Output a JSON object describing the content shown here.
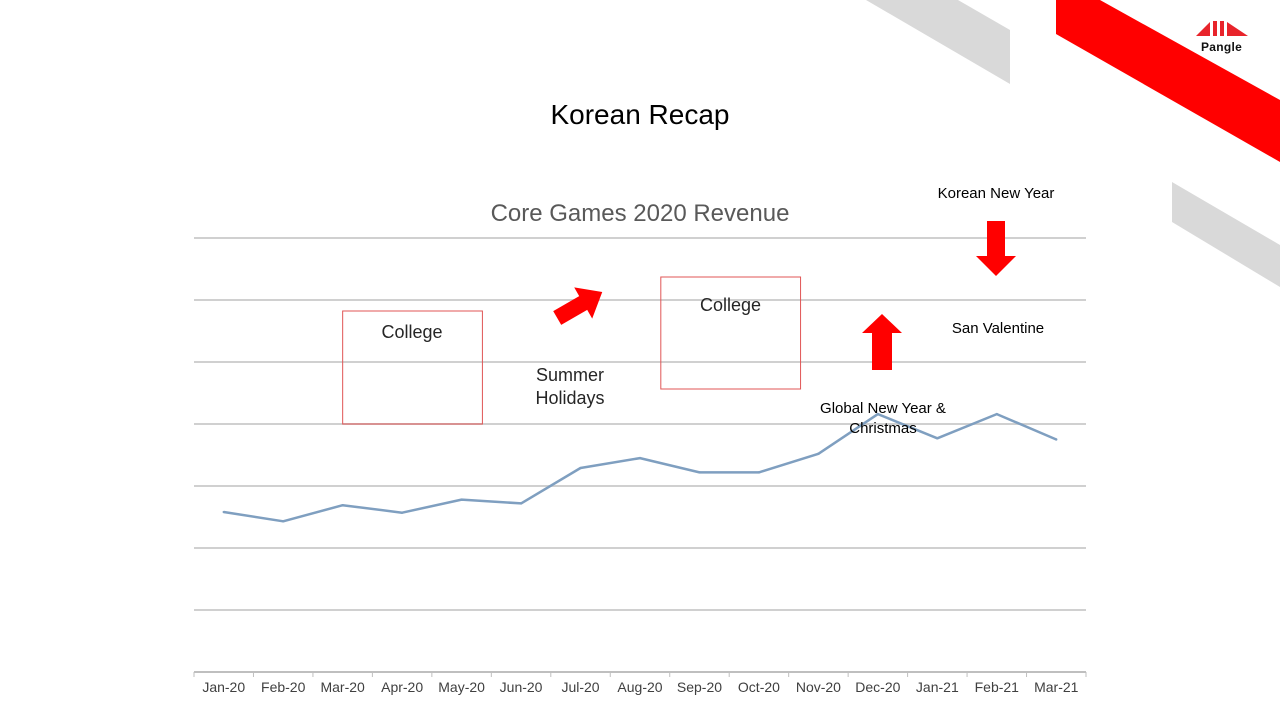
{
  "slide": {
    "title": "Korean Recap",
    "logo_text": "Pangle"
  },
  "colors": {
    "accent": "#ff0000",
    "deco_gray": "#d9d9d9",
    "line": "#7f9fc0",
    "grid": "#d0d0d0",
    "box_border": "#e05555"
  },
  "chart_data": {
    "type": "line",
    "title": "Core Games 2020 Revenue",
    "xlabel": "",
    "ylabel": "",
    "categories": [
      "Jan-20",
      "Feb-20",
      "Mar-20",
      "Apr-20",
      "May-20",
      "Jun-20",
      "Jul-20",
      "Aug-20",
      "Sep-20",
      "Oct-20",
      "Nov-20",
      "Dec-20",
      "Jan-21",
      "Feb-21",
      "Mar-21"
    ],
    "values": [
      2.58,
      2.43,
      2.69,
      2.57,
      2.78,
      2.72,
      3.29,
      3.45,
      3.22,
      3.22,
      3.52,
      4.16,
      3.77,
      4.16,
      3.75
    ],
    "ylim": [
      0,
      7
    ],
    "grid": true,
    "y_tick_labels_visible": false,
    "legend": "none",
    "annotations": {
      "college_1": "College",
      "summer_holidays": "Summer Holidays",
      "college_2": "College",
      "korean_new_year": "Korean New Year",
      "san_valentine": "San Valentine",
      "global_new_year": "Global New Year & Christmas"
    }
  }
}
